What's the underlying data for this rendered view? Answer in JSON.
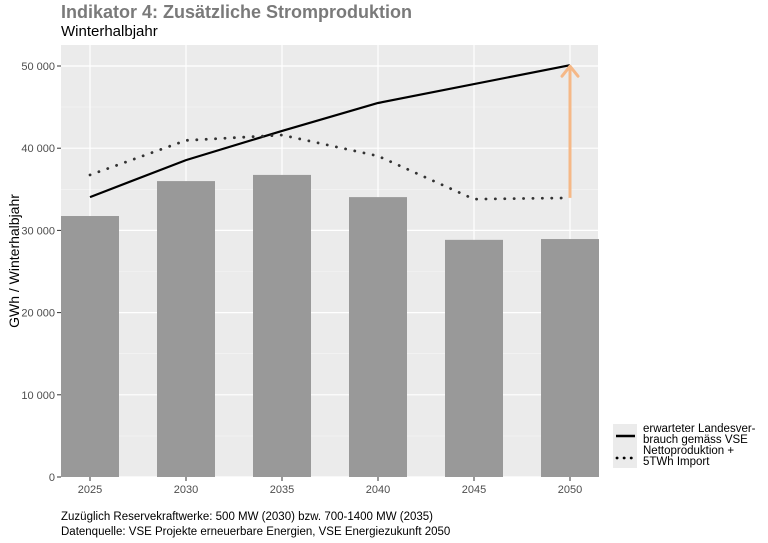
{
  "chart_data": {
    "type": "bar",
    "title": "Indikator 4: Zusätzliche Stromproduktion",
    "subtitle": "Winterhalbjahr",
    "xlabel": "",
    "ylabel": "GWh / Winterhalbjahr",
    "ylim": [
      0,
      52500
    ],
    "yticks": [
      0,
      10000,
      20000,
      30000,
      40000,
      50000
    ],
    "ytick_labels": [
      "0",
      "10 000",
      "20 000",
      "30 000",
      "40 000",
      "50 000"
    ],
    "categories": [
      "2025",
      "2030",
      "2035",
      "2040",
      "2045",
      "2050"
    ],
    "grid": true,
    "bars": {
      "name": "Produktion",
      "color": "#999999",
      "values": [
        31750,
        36000,
        36750,
        34050,
        28850,
        28950
      ]
    },
    "series": [
      {
        "name": "erwarteter Landesverbrauch gemäss VSE",
        "style": "solid",
        "color": "#000000",
        "values": [
          34050,
          38550,
          42100,
          45500,
          null,
          50100
        ]
      },
      {
        "name": "Nettoproduktion + 5TWh Import",
        "style": "dotted",
        "color": "#333333",
        "values": [
          36750,
          40950,
          41600,
          39050,
          33800,
          33950
        ]
      }
    ],
    "annotation": {
      "type": "arrow",
      "color": "#f5b887",
      "x": "2050",
      "from": 33950,
      "to": 50100
    },
    "legend": {
      "placement": "bottom-right",
      "entries": [
        {
          "lines": [
            "erwarteter Landesver-",
            "brauch gemäss VSE"
          ],
          "style": "solid"
        },
        {
          "lines": [
            "Nettoproduktion +",
            "5TWh Import"
          ],
          "style": "dotted"
        }
      ]
    },
    "captions": [
      "Zuzüglich Reservekraftwerke: 500 MW (2030) bzw. 700-1400 MW (2035)",
      "Datenquelle: VSE Projekte erneuerbare Energien, VSE Energiezukunft 2050"
    ]
  }
}
